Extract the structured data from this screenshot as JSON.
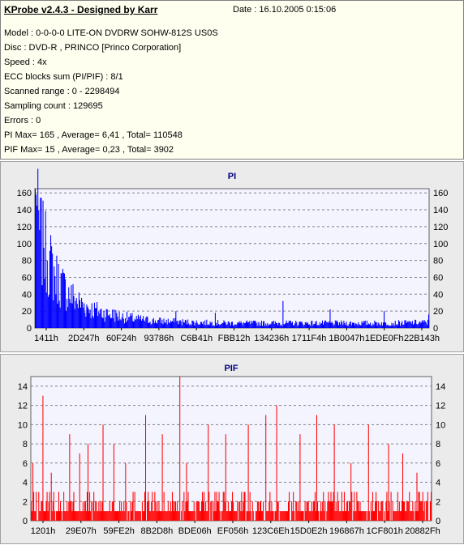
{
  "header": {
    "title": "KProbe v2.4.3 - Designed by Karr",
    "date": "Date : 16.10.2005 0:15:06"
  },
  "info_lines": [
    "Model : 0-0-0-0 LITE-ON DVDRW SOHW-812S  US0S",
    "Disc : DVD-R , PRINCO [Princo Corporation]",
    "Speed : 4x",
    "ECC blocks sum (PI/PIF) : 8/1",
    "Scanned range : 0 - 2298494",
    "Sampling count : 129695",
    "Errors : 0",
    "PI Max= 165 , Average= 6,41 , Total= 110548",
    "PIF Max= 15 , Average= 0,23 , Total= 3902"
  ],
  "colors": {
    "panel_bg": "#ebebeb",
    "plot_bg": "#f4f4ff",
    "pi_series": "#0000ff",
    "pif_series": "#ff0000",
    "grid": "#808080",
    "title": "#000080"
  },
  "chart_data": [
    {
      "type": "area",
      "title": "PI",
      "ylim": [
        0,
        165
      ],
      "yticks": [
        "0",
        "20",
        "40",
        "60",
        "80",
        "100",
        "120",
        "140",
        "160"
      ],
      "ytick_values": [
        0,
        20,
        40,
        60,
        80,
        100,
        120,
        140,
        160
      ],
      "xtick_labels": [
        "1411h",
        "2D247h",
        "60F24h",
        "93786h",
        "C6B41h",
        "FBB12h",
        "134236h",
        "1711F4h",
        "1B0047h",
        "1EDE0Fh",
        "22B143h"
      ],
      "grid": true,
      "profile": {
        "x": [
          0,
          0.02,
          0.05,
          0.08,
          0.11,
          0.14,
          0.18,
          0.22,
          0.26,
          0.3,
          0.35,
          0.4,
          0.5,
          0.6,
          0.7,
          0.8,
          0.9,
          1.0
        ],
        "y": [
          140,
          100,
          65,
          45,
          32,
          24,
          18,
          14,
          11,
          9,
          8,
          7,
          6,
          6,
          6,
          6,
          6,
          7
        ]
      },
      "spikes": [
        [
          0,
          165
        ],
        [
          2,
          158
        ],
        [
          4,
          150
        ],
        [
          6,
          145
        ],
        [
          9,
          130
        ],
        [
          13,
          120
        ],
        [
          18,
          110
        ],
        [
          30,
          95
        ],
        [
          42,
          80
        ],
        [
          60,
          60
        ],
        [
          75,
          50
        ],
        [
          100,
          40
        ],
        [
          160,
          18
        ],
        [
          280,
          22
        ],
        [
          500,
          20
        ],
        [
          640,
          18
        ],
        [
          880,
          32
        ],
        [
          1050,
          22
        ],
        [
          1240,
          20
        ],
        [
          1400,
          16
        ]
      ]
    },
    {
      "type": "bar",
      "title": "PIF",
      "ylim": [
        0,
        15
      ],
      "yticks": [
        "0",
        "2",
        "4",
        "6",
        "8",
        "10",
        "12",
        "14"
      ],
      "ytick_values": [
        0,
        2,
        4,
        6,
        8,
        10,
        12,
        14
      ],
      "xtick_labels": [
        "1201h",
        "29E07h",
        "59FE2h",
        "8B2D8h",
        "BDE06h",
        "EF056h",
        "123C6Eh",
        "15D0E2h",
        "196867h",
        "1CF801h",
        "20882Fh"
      ],
      "grid": true,
      "spikes": [
        [
          5,
          6
        ],
        [
          40,
          13
        ],
        [
          70,
          5
        ],
        [
          135,
          9
        ],
        [
          170,
          7
        ],
        [
          200,
          8
        ],
        [
          250,
          10
        ],
        [
          290,
          8
        ],
        [
          330,
          6
        ],
        [
          400,
          11
        ],
        [
          460,
          9
        ],
        [
          520,
          15
        ],
        [
          545,
          6
        ],
        [
          620,
          10
        ],
        [
          680,
          9
        ],
        [
          760,
          10
        ],
        [
          820,
          11
        ],
        [
          860,
          12
        ],
        [
          940,
          9
        ],
        [
          1000,
          11
        ],
        [
          1060,
          10
        ],
        [
          1120,
          6
        ],
        [
          1180,
          10
        ],
        [
          1250,
          8
        ],
        [
          1300,
          7
        ],
        [
          1350,
          5
        ]
      ]
    }
  ]
}
